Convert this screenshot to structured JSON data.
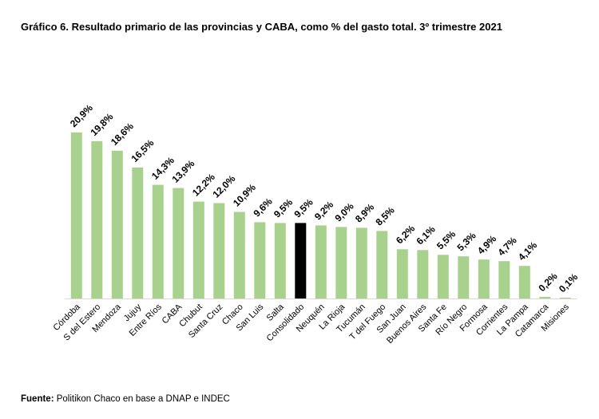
{
  "chart_data": {
    "type": "bar",
    "title": "Gráfico 6. Resultado primario de las provincias y CABA, como % del gasto total. 3º trimestre 2021",
    "xlabel": "",
    "ylabel": "",
    "ylim": [
      0,
      22
    ],
    "grid": false,
    "categories": [
      "Córdoba",
      "S del Estero",
      "Mendoza",
      "Jujuy",
      "Entre Ríos",
      "CABA",
      "Chubut",
      "Santa Cruz",
      "Chaco",
      "San Luis",
      "Salta",
      "Consolidado",
      "Neuquén",
      "La Rioja",
      "Tucumán",
      "T del Fuego",
      "San Juan",
      "Buenos Aires",
      "Santa Fe",
      "Río Negro",
      "Formosa",
      "Corrientes",
      "La Pampa",
      "Catamarca",
      "Misiones"
    ],
    "values": [
      20.9,
      19.8,
      18.6,
      16.5,
      14.3,
      13.9,
      12.2,
      12.0,
      10.9,
      9.6,
      9.5,
      9.5,
      9.2,
      9.0,
      8.9,
      8.5,
      6.2,
      6.1,
      5.5,
      5.3,
      4.9,
      4.7,
      4.1,
      0.2,
      0.1
    ],
    "labels": [
      "20,9%",
      "19,8%",
      "18,6%",
      "16,5%",
      "14,3%",
      "13,9%",
      "12,2%",
      "12,0%",
      "10,9%",
      "9,6%",
      "9,5%",
      "9,5%",
      "9,2%",
      "9,0%",
      "8,9%",
      "8,5%",
      "6,2%",
      "6,1%",
      "5,5%",
      "5,3%",
      "4,9%",
      "4,7%",
      "4,1%",
      "0,2%",
      "0,1%"
    ],
    "highlight": "Consolidado",
    "colors": {
      "bar": "#a9d18e",
      "highlight": "#000000",
      "axis": "#d9d9d9"
    }
  },
  "source": {
    "label": "Fuente:",
    "text": " Politikon Chaco en base a DNAP e INDEC"
  }
}
